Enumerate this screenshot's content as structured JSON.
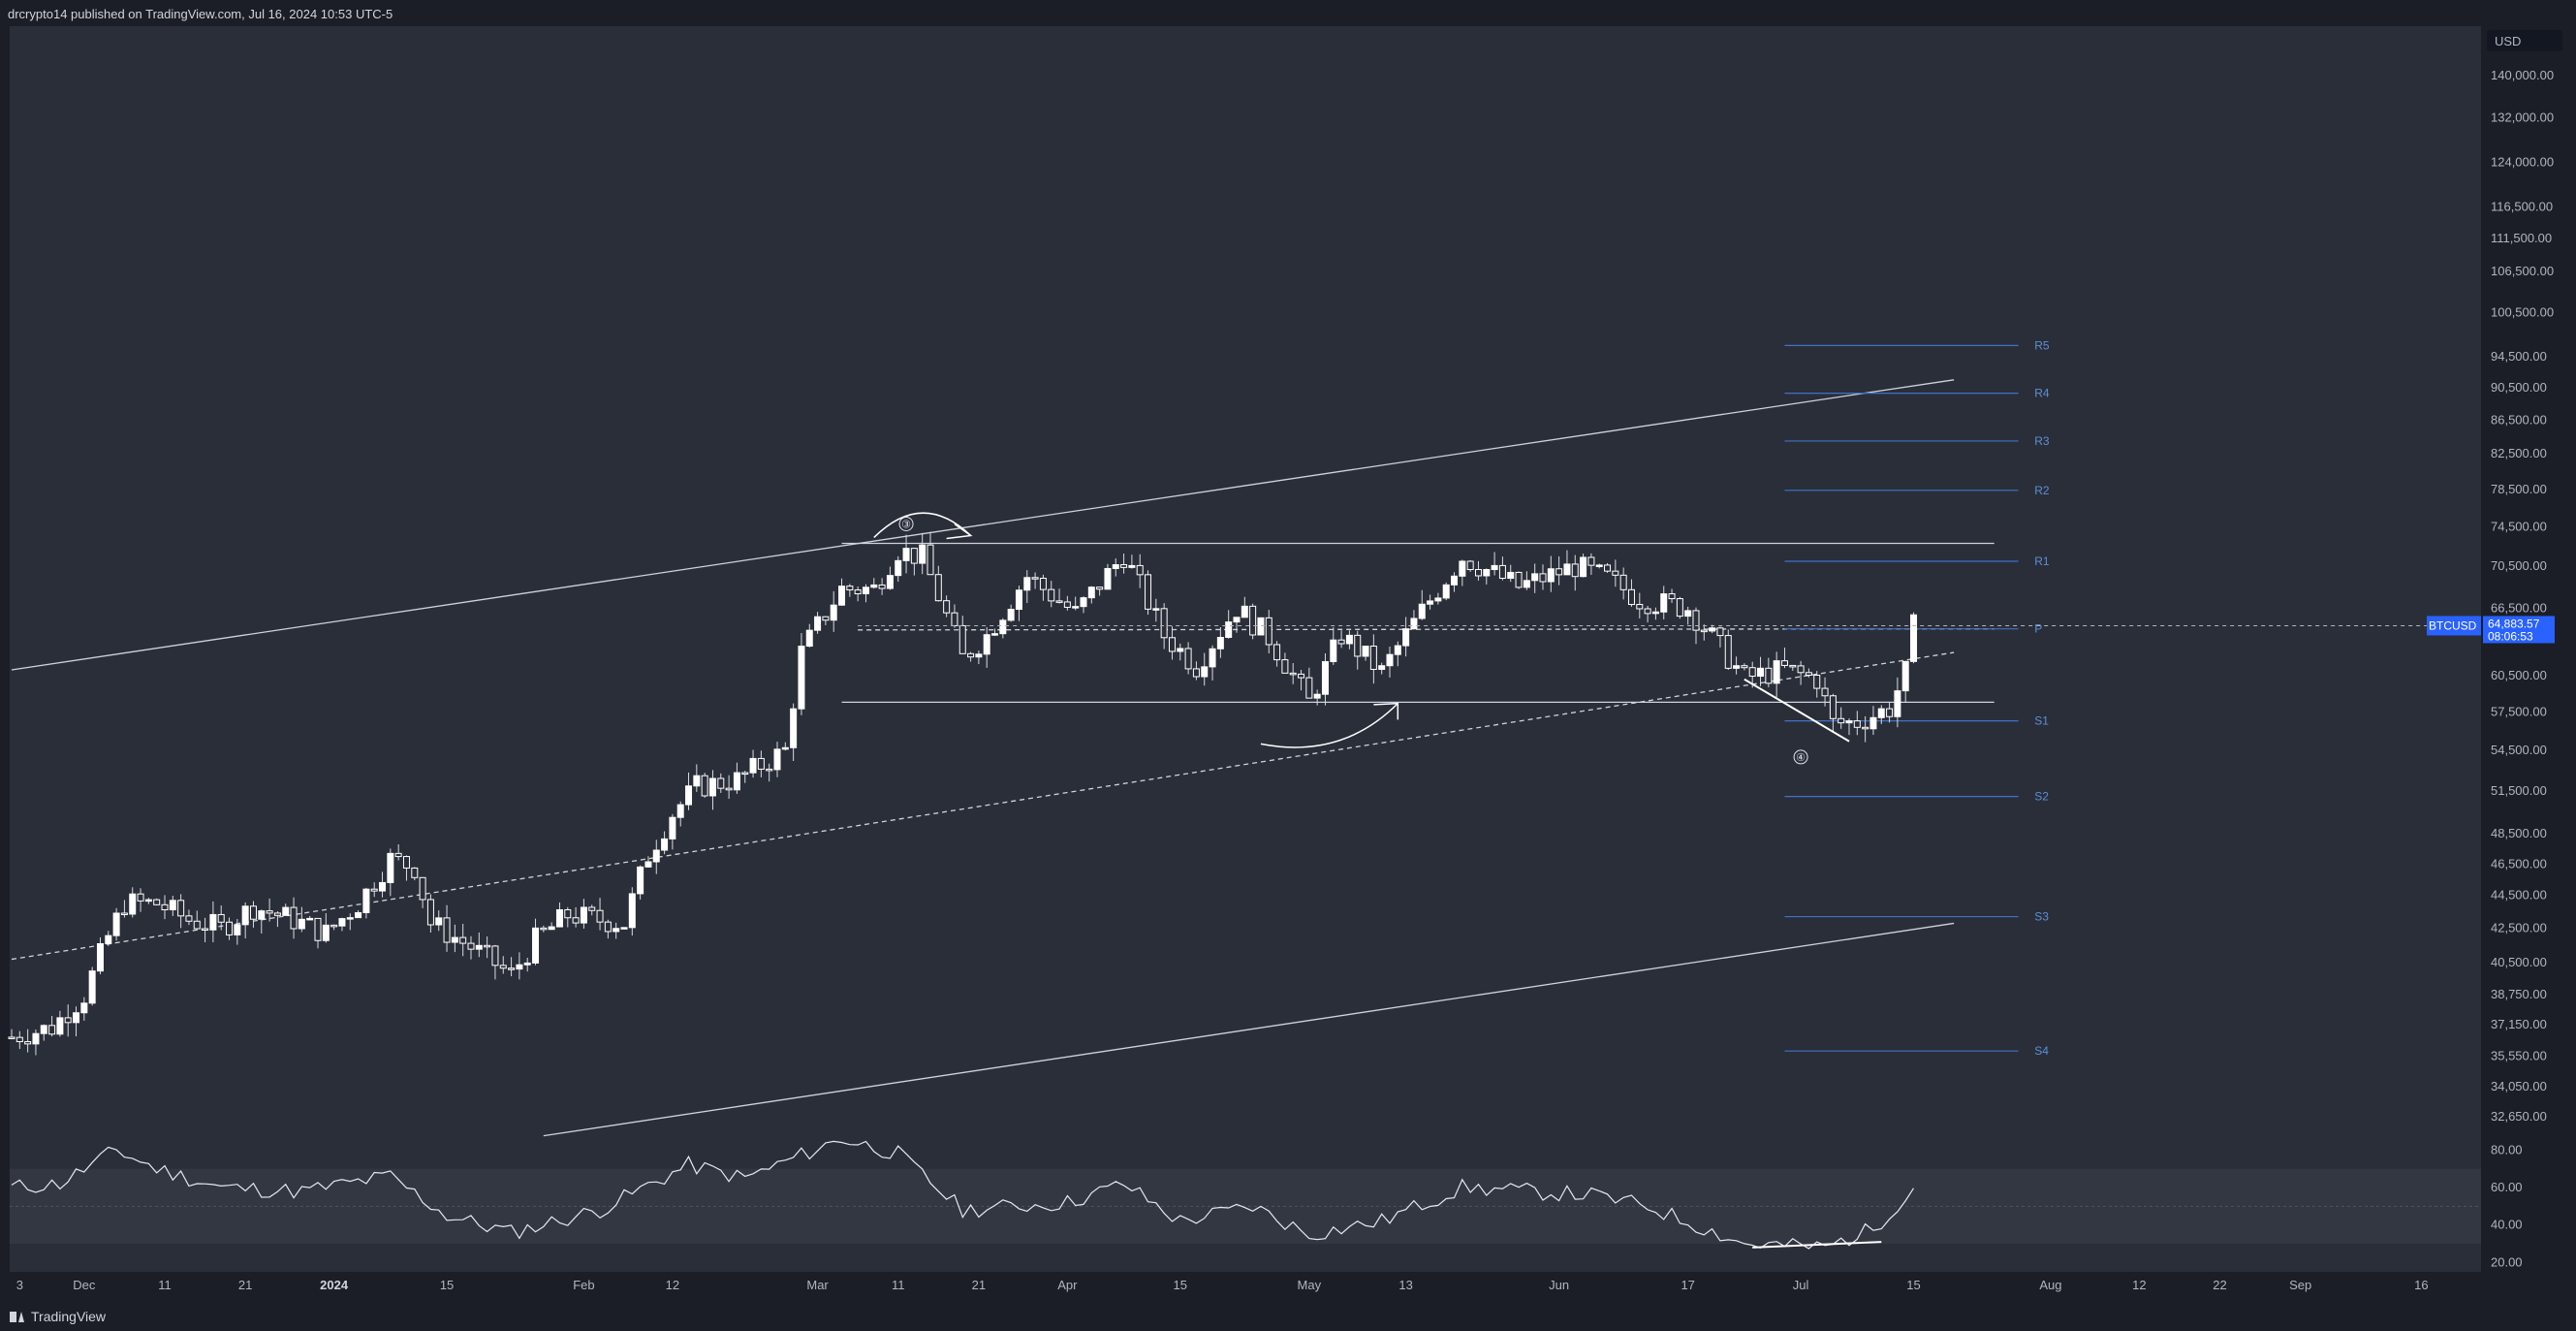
{
  "header": {
    "publisher": "drcrypto14 published on TradingView.com, Jul 16, 2024 10:53 UTC-5"
  },
  "footer": {
    "brand": "TradingView"
  },
  "colors": {
    "background": "#2a2e39",
    "page": "#1b1e26",
    "candle": "#ffffff",
    "pivot_line": "#3f72c7",
    "pivot_text": "#5b8fd6",
    "price_badge": "#2962ff",
    "rsi_band": "#3a3e4a"
  },
  "icons": {
    "logo": "tradingview-logo-icon"
  },
  "chart_data": {
    "type": "candlestick",
    "symbol": "BTCUSD",
    "currency": "USD",
    "last_price": "64,883.57",
    "countdown": "08:06:53",
    "y_scale": "log",
    "ylim": [
      32000,
      148000
    ],
    "y_ticks": [
      "140,000.00",
      "132,000.00",
      "124,000.00",
      "116,500.00",
      "111,500.00",
      "106,500.00",
      "100,500.00",
      "94,500.00",
      "90,500.00",
      "86,500.00",
      "82,500.00",
      "78,500.00",
      "74,500.00",
      "70,500.00",
      "66,500.00",
      "60,500.00",
      "57,500.00",
      "54,500.00",
      "51,500.00",
      "48,500.00",
      "46,500.00",
      "44,500.00",
      "42,500.00",
      "40,500.00",
      "38,750.00",
      "37,150.00",
      "35,550.00",
      "34,050.00",
      "32,650.00"
    ],
    "x_ticks": [
      {
        "label": "3",
        "date": "2023-11-23"
      },
      {
        "label": "Dec",
        "date": "2023-12-01"
      },
      {
        "label": "11",
        "date": "2023-12-11"
      },
      {
        "label": "21",
        "date": "2023-12-21"
      },
      {
        "label": "2024",
        "date": "2024-01-01",
        "bold": true
      },
      {
        "label": "15",
        "date": "2024-01-15"
      },
      {
        "label": "Feb",
        "date": "2024-02-01"
      },
      {
        "label": "12",
        "date": "2024-02-12"
      },
      {
        "label": "Mar",
        "date": "2024-03-01"
      },
      {
        "label": "11",
        "date": "2024-03-11"
      },
      {
        "label": "21",
        "date": "2024-03-21"
      },
      {
        "label": "Apr",
        "date": "2024-04-01"
      },
      {
        "label": "15",
        "date": "2024-04-15"
      },
      {
        "label": "May",
        "date": "2024-05-01"
      },
      {
        "label": "13",
        "date": "2024-05-13"
      },
      {
        "label": "Jun",
        "date": "2024-06-01"
      },
      {
        "label": "17",
        "date": "2024-06-17"
      },
      {
        "label": "Jul",
        "date": "2024-07-01"
      },
      {
        "label": "15",
        "date": "2024-07-15"
      },
      {
        "label": "Aug",
        "date": "2024-08-01"
      },
      {
        "label": "12",
        "date": "2024-08-12"
      },
      {
        "label": "22",
        "date": "2024-08-22"
      },
      {
        "label": "Sep",
        "date": "2024-09-01"
      },
      {
        "label": "16",
        "date": "2024-09-16"
      }
    ],
    "close_series": [
      {
        "date": "2023-11-22",
        "close": 36500
      },
      {
        "date": "2023-11-27",
        "close": 37000
      },
      {
        "date": "2023-12-01",
        "close": 38700
      },
      {
        "date": "2023-12-04",
        "close": 42000
      },
      {
        "date": "2023-12-06",
        "close": 44000
      },
      {
        "date": "2023-12-10",
        "close": 44000
      },
      {
        "date": "2023-12-14",
        "close": 43000
      },
      {
        "date": "2023-12-18",
        "close": 42500
      },
      {
        "date": "2023-12-22",
        "close": 43800
      },
      {
        "date": "2023-12-27",
        "close": 43000
      },
      {
        "date": "2023-12-31",
        "close": 42200
      },
      {
        "date": "2024-01-04",
        "close": 44000
      },
      {
        "date": "2024-01-08",
        "close": 46800
      },
      {
        "date": "2024-01-11",
        "close": 46300
      },
      {
        "date": "2024-01-13",
        "close": 42800
      },
      {
        "date": "2024-01-18",
        "close": 41400
      },
      {
        "date": "2024-01-23",
        "close": 39800
      },
      {
        "date": "2024-01-26",
        "close": 41800
      },
      {
        "date": "2024-01-30",
        "close": 43300
      },
      {
        "date": "2024-02-03",
        "close": 43000
      },
      {
        "date": "2024-02-06",
        "close": 42800
      },
      {
        "date": "2024-02-09",
        "close": 47100
      },
      {
        "date": "2024-02-12",
        "close": 49900
      },
      {
        "date": "2024-02-15",
        "close": 51800
      },
      {
        "date": "2024-02-20",
        "close": 52300
      },
      {
        "date": "2024-02-26",
        "close": 54500
      },
      {
        "date": "2024-02-28",
        "close": 62500
      },
      {
        "date": "2024-03-04",
        "close": 68300
      },
      {
        "date": "2024-03-08",
        "close": 68300
      },
      {
        "date": "2024-03-11",
        "close": 72100
      },
      {
        "date": "2024-03-14",
        "close": 71400
      },
      {
        "date": "2024-03-19",
        "close": 62000
      },
      {
        "date": "2024-03-22",
        "close": 64000
      },
      {
        "date": "2024-03-27",
        "close": 69500
      },
      {
        "date": "2024-04-02",
        "close": 66000
      },
      {
        "date": "2024-04-08",
        "close": 71600
      },
      {
        "date": "2024-04-13",
        "close": 64000
      },
      {
        "date": "2024-04-17",
        "close": 61300
      },
      {
        "date": "2024-04-22",
        "close": 66500
      },
      {
        "date": "2024-04-26",
        "close": 63800
      },
      {
        "date": "2024-05-01",
        "close": 58300
      },
      {
        "date": "2024-05-05",
        "close": 64000
      },
      {
        "date": "2024-05-10",
        "close": 60800
      },
      {
        "date": "2024-05-15",
        "close": 66200
      },
      {
        "date": "2024-05-20",
        "close": 71400
      },
      {
        "date": "2024-05-27",
        "close": 68500
      },
      {
        "date": "2024-06-03",
        "close": 70500
      },
      {
        "date": "2024-06-07",
        "close": 69300
      },
      {
        "date": "2024-06-11",
        "close": 67300
      },
      {
        "date": "2024-06-17",
        "close": 66500
      },
      {
        "date": "2024-06-24",
        "close": 60300
      },
      {
        "date": "2024-06-29",
        "close": 61000
      },
      {
        "date": "2024-07-03",
        "close": 60200
      },
      {
        "date": "2024-07-05",
        "close": 56600
      },
      {
        "date": "2024-07-08",
        "close": 56700
      },
      {
        "date": "2024-07-12",
        "close": 57800
      },
      {
        "date": "2024-07-14",
        "close": 60800
      },
      {
        "date": "2024-07-15",
        "close": 64800
      }
    ],
    "rsi": {
      "ylim": [
        15,
        90
      ],
      "ticks": [
        "80.00",
        "60.00",
        "40.00",
        "20.00"
      ],
      "band": [
        30,
        70
      ],
      "values": [
        {
          "date": "2023-11-22",
          "v": 60
        },
        {
          "date": "2023-11-28",
          "v": 62
        },
        {
          "date": "2023-12-05",
          "v": 80
        },
        {
          "date": "2023-12-10",
          "v": 70
        },
        {
          "date": "2023-12-18",
          "v": 60
        },
        {
          "date": "2023-12-28",
          "v": 58
        },
        {
          "date": "2024-01-08",
          "v": 66
        },
        {
          "date": "2024-01-15",
          "v": 45
        },
        {
          "date": "2024-01-23",
          "v": 36
        },
        {
          "date": "2024-02-03",
          "v": 48
        },
        {
          "date": "2024-02-14",
          "v": 72
        },
        {
          "date": "2024-02-21",
          "v": 65
        },
        {
          "date": "2024-03-04",
          "v": 86
        },
        {
          "date": "2024-03-11",
          "v": 78
        },
        {
          "date": "2024-03-19",
          "v": 48
        },
        {
          "date": "2024-04-01",
          "v": 52
        },
        {
          "date": "2024-04-08",
          "v": 62
        },
        {
          "date": "2024-04-15",
          "v": 42
        },
        {
          "date": "2024-04-24",
          "v": 50
        },
        {
          "date": "2024-05-01",
          "v": 35
        },
        {
          "date": "2024-05-10",
          "v": 42
        },
        {
          "date": "2024-05-20",
          "v": 60
        },
        {
          "date": "2024-06-05",
          "v": 56
        },
        {
          "date": "2024-06-12",
          "v": 50
        },
        {
          "date": "2024-06-24",
          "v": 30
        },
        {
          "date": "2024-07-04",
          "v": 28
        },
        {
          "date": "2024-07-10",
          "v": 38
        },
        {
          "date": "2024-07-15",
          "v": 60
        }
      ]
    },
    "pivots": [
      {
        "label": "R5",
        "value": 96000
      },
      {
        "label": "R4",
        "value": 89800
      },
      {
        "label": "R3",
        "value": 84000
      },
      {
        "label": "R2",
        "value": 78400
      },
      {
        "label": "R1",
        "value": 71000
      },
      {
        "label": "P",
        "value": 64600
      },
      {
        "label": "S1",
        "value": 56800
      },
      {
        "label": "S2",
        "value": 51100
      },
      {
        "label": "S3",
        "value": 43200
      },
      {
        "label": "S4",
        "value": 35800
      }
    ],
    "annotations": [
      {
        "label": "③",
        "date": "2024-03-12",
        "value": 74800
      },
      {
        "label": "④",
        "date": "2024-07-01",
        "value": 54000
      }
    ]
  }
}
